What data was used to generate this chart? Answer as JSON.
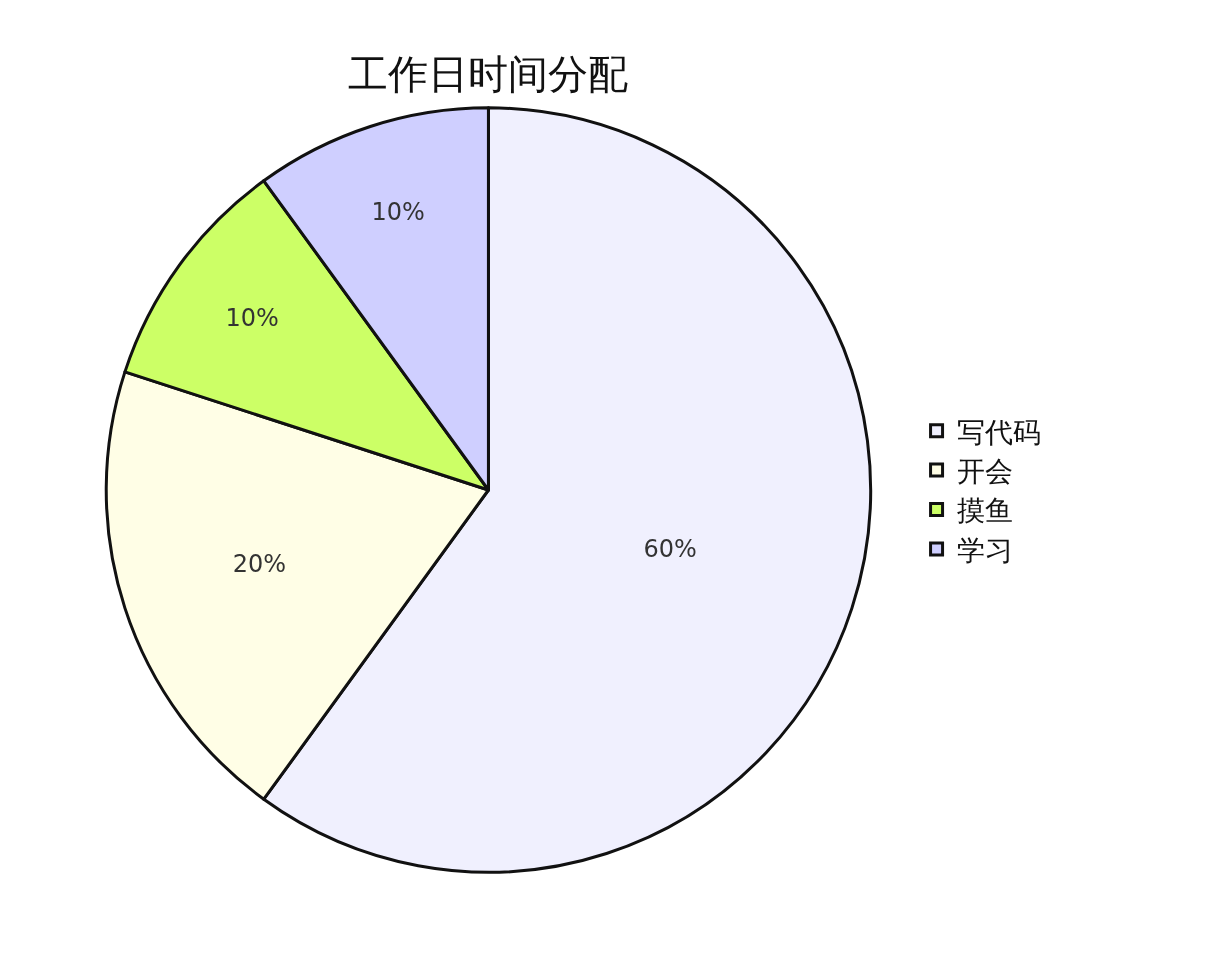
{
  "chart_data": {
    "type": "pie",
    "title": "工作日时间分配",
    "categories": [
      "写代码",
      "开会",
      "摸鱼",
      "学习"
    ],
    "values": [
      60,
      20,
      10,
      10
    ],
    "colors": [
      "#f0f0fe",
      "#fffee6",
      "#ccff66",
      "#cfcfff"
    ],
    "value_labels": [
      "60%",
      "20%",
      "10%",
      "10%"
    ],
    "legend": "right"
  }
}
